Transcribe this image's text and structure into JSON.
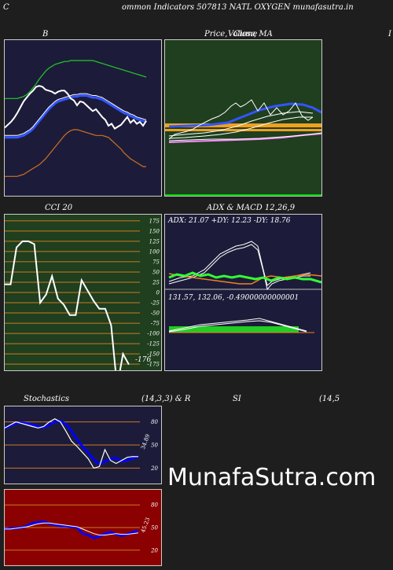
{
  "header": {
    "left": "C",
    "center": "ommon  Indicators 507813 NATL OXYGEN  munafasutra.in"
  },
  "panels": {
    "bollinger": {
      "title": "B"
    },
    "price": {
      "title_a": "Price,",
      "title_b": "Volume",
      "title_c": "Close",
      "title_d": ",  MA",
      "right_edge": "I"
    },
    "cci": {
      "title": "CCI 20",
      "last_value": "-176"
    },
    "adx": {
      "title": "ADX   & MACD 12,26,9",
      "adx_text": "ADX: 21.07  +DY: 12.23  -DY: 18.76"
    },
    "macd": {
      "text": "131.57,  132.06,  -0.49000000000001"
    },
    "stoch": {
      "title": "Stochastics",
      "params": "(14,3,3) & R",
      "last": "34.89"
    },
    "rsi": {
      "title": "SI",
      "params": "(14,5",
      "last": "45.23"
    }
  },
  "watermark": "MunafaSutra.com",
  "colors": {
    "panel_navy": "#1c1c3a",
    "panel_green": "#1f3f1f",
    "panel_red": "#8b0000",
    "grid_orange": "#cc7a22"
  },
  "chart_data": [
    {
      "type": "line",
      "title": "Bollinger Bands",
      "series": [
        {
          "values": [
            120,
            123,
            126,
            130,
            135,
            141,
            147,
            151,
            155,
            158,
            162,
            163,
            162,
            159,
            158,
            157,
            155,
            157,
            158,
            158,
            155,
            150,
            148,
            143,
            147,
            146,
            143,
            140,
            137,
            139,
            135,
            131,
            128,
            122,
            124,
            119,
            121,
            123,
            127,
            131,
            125,
            128,
            124,
            126,
            122,
            127
          ]
        },
        {
          "values": [
            110,
            110,
            110,
            110,
            110,
            111,
            112,
            114,
            116,
            119,
            123,
            127,
            131,
            135,
            139,
            142,
            145,
            147,
            148,
            149,
            150,
            151,
            152,
            152,
            153,
            153,
            153,
            152,
            151,
            151,
            150,
            149,
            147,
            145,
            143,
            141,
            139,
            137,
            135,
            134,
            132,
            131,
            129,
            128,
            127,
            126
          ]
        },
        {
          "values": [
            150,
            150,
            150,
            150,
            150,
            151,
            152,
            154,
            157,
            161,
            165,
            170,
            174,
            178,
            181,
            183,
            185,
            186,
            187,
            188,
            188,
            189,
            189,
            189,
            189,
            189,
            189,
            189,
            189,
            188,
            187,
            186,
            185,
            184,
            183,
            182,
            181,
            180,
            179,
            178,
            177,
            176,
            175,
            174,
            173,
            172
          ]
        },
        {
          "values": [
            70,
            70,
            70,
            70,
            70,
            71,
            72,
            74,
            76,
            78,
            80,
            82,
            85,
            88,
            92,
            96,
            100,
            104,
            108,
            112,
            115,
            117,
            118,
            118,
            117,
            116,
            115,
            114,
            113,
            112,
            112,
            112,
            111,
            110,
            107,
            104,
            101,
            98,
            94,
            91,
            88,
            86,
            84,
            82,
            80,
            80
          ]
        }
      ]
    },
    {
      "type": "line",
      "title": "CCI 20",
      "y_ticks": [
        175,
        150,
        125,
        100,
        75,
        50,
        25,
        0,
        -25,
        -50,
        -75,
        -100,
        -125,
        -150,
        -175
      ],
      "ylim": [
        -190,
        190
      ],
      "series": [
        {
          "values": [
            20,
            20,
            110,
            125,
            125,
            118,
            -25,
            -5,
            40,
            -15,
            -30,
            -55,
            -55,
            30,
            5,
            -20,
            -40,
            -40,
            -80,
            -230,
            -150,
            -176
          ]
        }
      ]
    },
    {
      "type": "line",
      "title": "Stochastics",
      "y_ticks": [
        80,
        50,
        20
      ],
      "ylim": [
        0,
        100
      ],
      "series": [
        {
          "values": [
            72,
            76,
            80,
            78,
            76,
            74,
            72,
            74,
            80,
            84,
            80,
            68,
            55,
            48,
            40,
            32,
            20,
            22,
            44,
            30,
            26,
            30,
            34,
            35,
            34.89
          ]
        },
        {
          "values": [
            72,
            75,
            78,
            79,
            78,
            76,
            74,
            73,
            76,
            80,
            81,
            77,
            68,
            57,
            48,
            40,
            31,
            25,
            29,
            32,
            33,
            29,
            30,
            33,
            34.89
          ]
        }
      ]
    },
    {
      "type": "line",
      "title": "RSI",
      "y_ticks": [
        80,
        50,
        20
      ],
      "ylim": [
        0,
        100
      ],
      "series": [
        {
          "values": [
            48,
            49,
            49,
            50,
            52,
            56,
            57,
            58,
            55,
            54,
            52,
            52,
            51,
            50,
            42,
            40,
            36,
            38,
            42,
            44,
            41,
            39,
            41,
            44,
            45.23
          ]
        },
        {
          "values": [
            48,
            48,
            49,
            50,
            51,
            53,
            55,
            56,
            56,
            55,
            54,
            53,
            52,
            51,
            48,
            45,
            42,
            40,
            40,
            41,
            42,
            41,
            41,
            42,
            43
          ]
        }
      ]
    }
  ]
}
